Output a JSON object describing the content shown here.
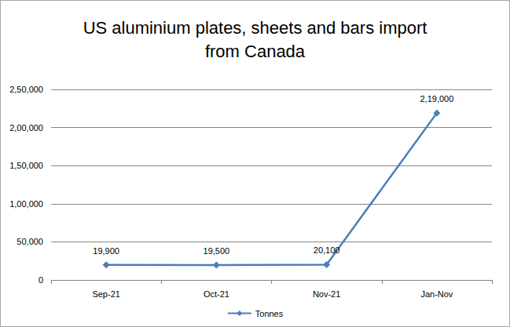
{
  "chart_data": {
    "type": "line",
    "title": "US aluminium plates, sheets and bars import\nfrom Canada",
    "categories": [
      "Sep-21",
      "Oct-21",
      "Nov-21",
      "Jan-Nov"
    ],
    "series": [
      {
        "name": "Tonnes",
        "color": "#4a7ebb",
        "marker": "diamond",
        "line_style": "solid",
        "values": [
          19900,
          19500,
          20100,
          219000
        ],
        "value_labels": [
          "19,900",
          "19,500",
          "20,100",
          "2,19,000"
        ]
      }
    ],
    "ylim": [
      0,
      250000
    ],
    "yticks": [
      0,
      {
        "value": 50000,
        "label": "50,000"
      },
      {
        "value": 100000,
        "label": "1,00,000"
      },
      {
        "value": 150000,
        "label": "1,50,000"
      },
      {
        "value": 200000,
        "label": "2,00,000"
      },
      {
        "value": 250000,
        "label": "2,50,000"
      }
    ],
    "grid": true,
    "legend": "bottom",
    "data_labels": true
  }
}
